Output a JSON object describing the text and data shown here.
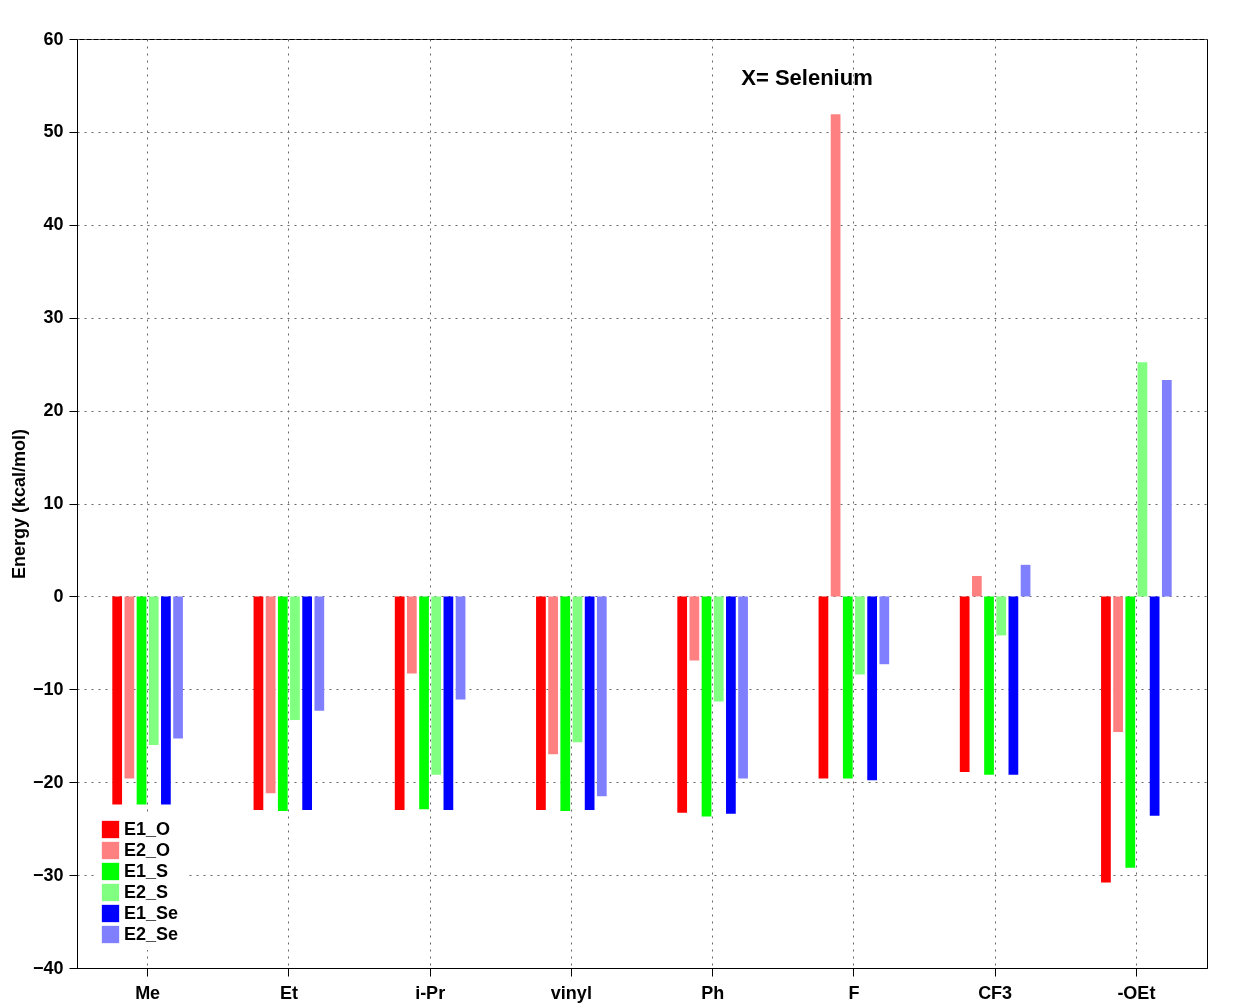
{
  "chart_data": {
    "type": "bar",
    "title": "X= Selenium",
    "ylabel": "Energy (kcal/mol)",
    "categories": [
      "Me",
      "Et",
      "i-Pr",
      "vinyl",
      "Ph",
      "F",
      "CF3",
      "-OEt"
    ],
    "series": [
      {
        "name": "E1_O",
        "color": "#ff0000",
        "values": [
          -22.4,
          -23.0,
          -23.0,
          -23.0,
          -23.3,
          -19.6,
          -18.9,
          -30.8
        ]
      },
      {
        "name": "E2_O",
        "color": "#ff8080",
        "values": [
          -19.6,
          -21.2,
          -8.3,
          -17.0,
          -6.9,
          51.9,
          2.2,
          -14.6
        ]
      },
      {
        "name": "E1_S",
        "color": "#00ff00",
        "values": [
          -22.4,
          -23.1,
          -22.9,
          -23.1,
          -23.7,
          -19.6,
          -19.2,
          -29.2
        ]
      },
      {
        "name": "E2_S",
        "color": "#80ff80",
        "values": [
          -16.0,
          -13.3,
          -19.2,
          -15.7,
          -11.3,
          -8.4,
          -4.2,
          25.2
        ]
      },
      {
        "name": "E1_Se",
        "color": "#0000ff",
        "values": [
          -22.4,
          -23.0,
          -23.0,
          -23.0,
          -23.4,
          -19.8,
          -19.2,
          -23.6
        ]
      },
      {
        "name": "E2_Se",
        "color": "#8080ff",
        "values": [
          -15.3,
          -12.3,
          -11.1,
          -21.5,
          -19.6,
          -7.3,
          3.4,
          23.3
        ]
      }
    ],
    "ylim": [
      -40,
      60
    ],
    "yticks": [
      -40,
      -30,
      -20,
      -10,
      0,
      10,
      20,
      30,
      40,
      50,
      60
    ],
    "grid": true,
    "legend": "bottom left"
  }
}
